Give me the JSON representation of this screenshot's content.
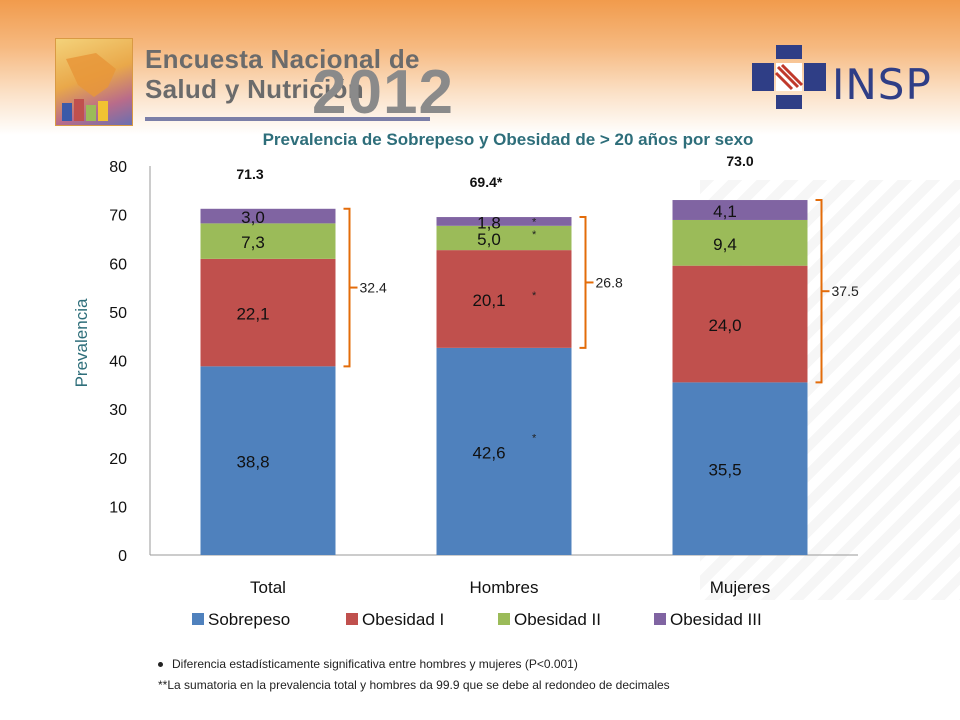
{
  "header": {
    "logo_line1": "Encuesta Nacional de",
    "logo_line2": "Salud y Nutrición",
    "logo_year": "2012",
    "insp_text": "INSP"
  },
  "chart_data": {
    "type": "bar",
    "stacked": true,
    "title": "Prevalencia de Sobrepeso y Obesidad de > 20 años  por sexo",
    "xlabel": "",
    "ylabel": "Prevalencia",
    "ylim": [
      0,
      80
    ],
    "yticks": [
      "0",
      "10",
      "20",
      "30",
      "40",
      "50",
      "60",
      "70",
      "80"
    ],
    "categories": [
      "Total",
      "Hombres",
      "Mujeres"
    ],
    "series": [
      {
        "name": "Sobrepeso",
        "color": "#4f81bd",
        "values": [
          38.8,
          42.6,
          35.5
        ],
        "labels": [
          "38,8",
          "42,6",
          "35,5"
        ]
      },
      {
        "name": "Obesidad I",
        "color": "#c0504d",
        "values": [
          22.1,
          20.1,
          24.0
        ],
        "labels": [
          "22,1",
          "20,1",
          "24,0"
        ]
      },
      {
        "name": "Obesidad II",
        "color": "#9bbb59",
        "values": [
          7.3,
          5.0,
          9.4
        ],
        "labels": [
          "7,3",
          "5,0",
          "9,4"
        ]
      },
      {
        "name": "Obesidad III",
        "color": "#8064a2",
        "values": [
          3.0,
          1.8,
          4.1
        ],
        "labels": [
          "3,0",
          "1,8",
          "4,1"
        ]
      }
    ],
    "totals": [
      "71.3",
      "69.4*",
      "73.0"
    ],
    "obesity_totals": [
      "32.4",
      "26.8",
      "37.5"
    ],
    "significance_marker": "*",
    "legend_position": "bottom",
    "grid": false,
    "bracket_color": "#e36c0a"
  },
  "footnotes": {
    "note1": "Diferencia estadísticamente significativa entre hombres y mujeres (P<0.001)",
    "note2": "**La sumatoria en  la prevalencia total y hombres  da  99.9 que se debe al redondeo de decimales"
  }
}
